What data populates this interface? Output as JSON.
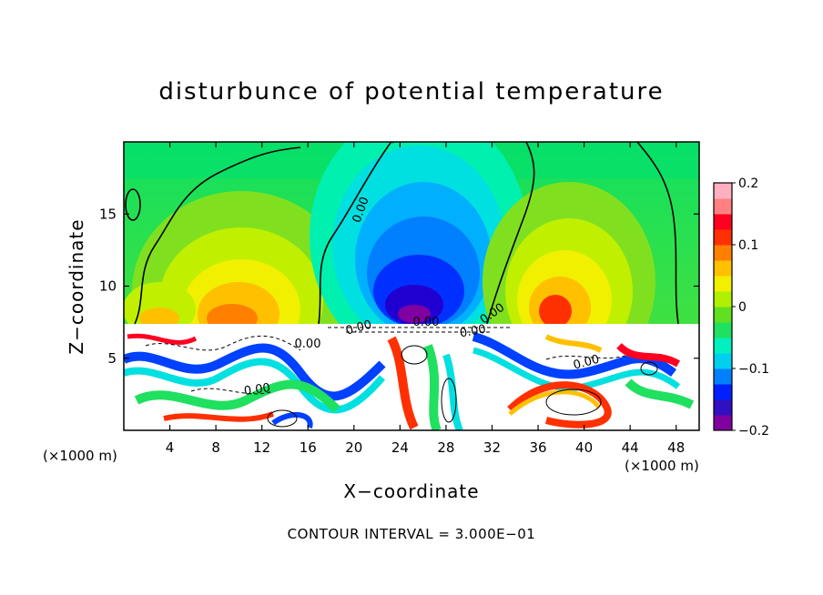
{
  "chart_data": {
    "type": "heatmap",
    "title": "disturbunce of potential temperature",
    "xlabel": "X−coordinate",
    "ylabel": "Z−coordinate",
    "x_unit_label": "(×1000 m)",
    "y_unit_label": "(×1000 m)",
    "xlim": [
      0,
      50
    ],
    "ylim": [
      0,
      20
    ],
    "x_ticks": [
      4,
      8,
      12,
      16,
      20,
      24,
      28,
      32,
      36,
      40,
      44,
      48
    ],
    "y_ticks": [
      5,
      10,
      15
    ],
    "colorbar": {
      "min": -0.2,
      "max": 0.2,
      "ticks": [
        {
          "value": 0.2,
          "label": "0.2"
        },
        {
          "value": 0.1,
          "label": "0.1"
        },
        {
          "value": 0,
          "label": "0"
        },
        {
          "value": -0.1,
          "label": "−0.1"
        },
        {
          "value": -0.2,
          "label": "−0.2"
        }
      ],
      "colors": [
        "#8000a0",
        "#3010c0",
        "#0020ff",
        "#0080ff",
        "#00d0f0",
        "#00f0c0",
        "#20e060",
        "#60e020",
        "#b0f000",
        "#f0f000",
        "#ffc000",
        "#ff8000",
        "#ff3000",
        "#ff0020",
        "#ff8080",
        "#ffb0c0"
      ]
    },
    "contour_labels": [
      "0.00",
      "0.00",
      "0.00",
      "0.00",
      "0.00",
      "0.00",
      "0.00",
      "0.00"
    ],
    "contour_interval_text": "CONTOUR INTERVAL = 3.000E−01"
  }
}
